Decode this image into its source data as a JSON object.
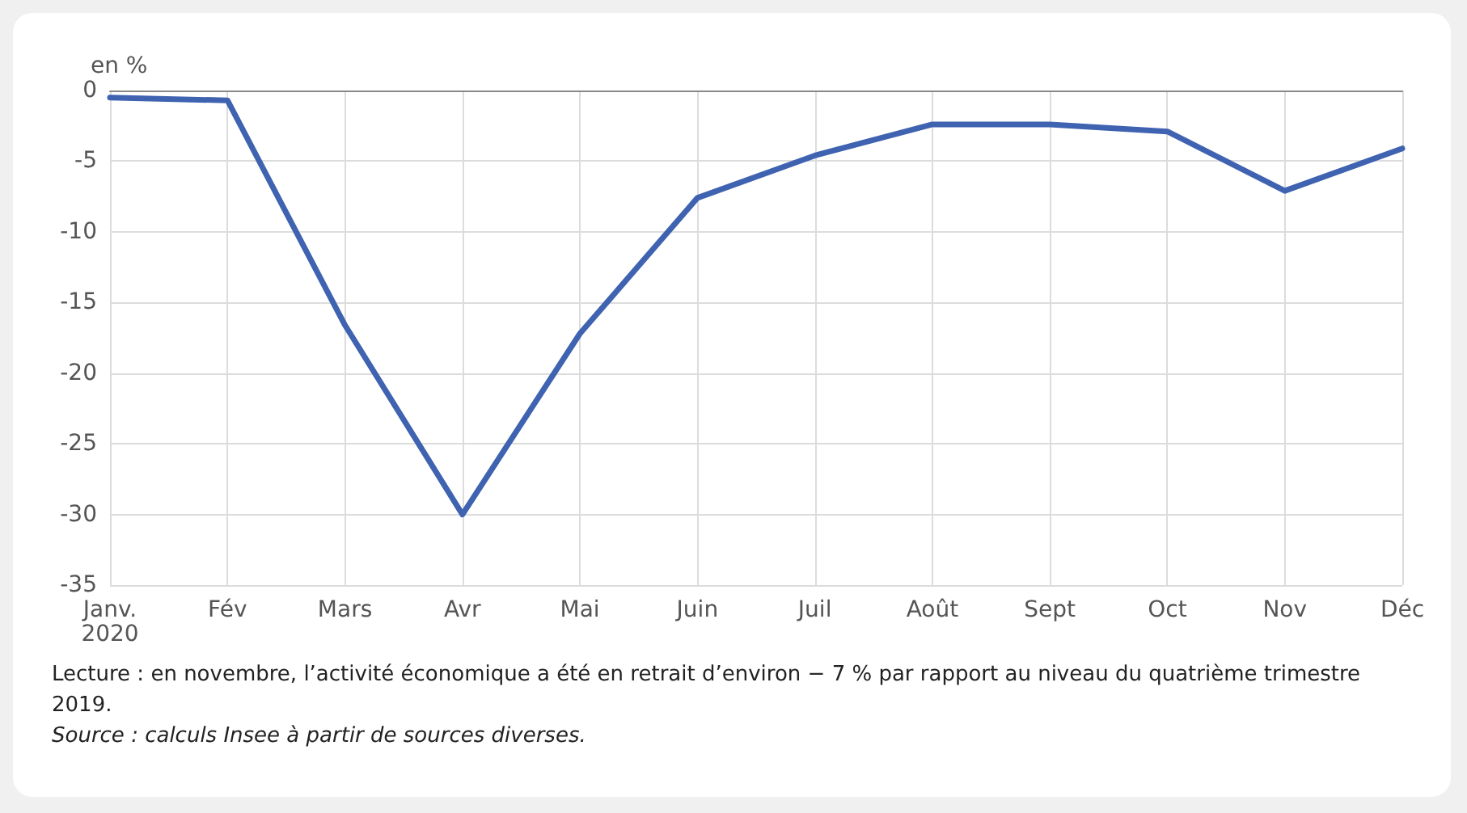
{
  "chart_data": {
    "type": "line",
    "ylabel": "en %",
    "categories": [
      "Janv.\n2020",
      "Fév",
      "Mars",
      "Avr",
      "Mai",
      "Juin",
      "Juil",
      "Août",
      "Sept",
      "Oct",
      "Nov",
      "Déc"
    ],
    "series": [
      {
        "color": "#3f63b0",
        "values": [
          -0.5,
          -0.7,
          -16.6,
          -30,
          -17.2,
          -7.6,
          -4.6,
          -2.4,
          -2.4,
          -2.9,
          -7.1,
          -4.1
        ]
      }
    ],
    "ylim": [
      -35,
      0
    ],
    "yticks": [
      -35,
      -30,
      -25,
      -20,
      -15,
      -10,
      -5,
      0
    ],
    "grid": true,
    "marker": "none",
    "line_style": "solid",
    "annotations": [
      "Lecture : en novembre, l’activité économique a été en retrait d’environ − 7 % par rapport au niveau du quatrième trimestre 2019.",
      "Source : calculs Insee à partir de sources diverses."
    ]
  }
}
